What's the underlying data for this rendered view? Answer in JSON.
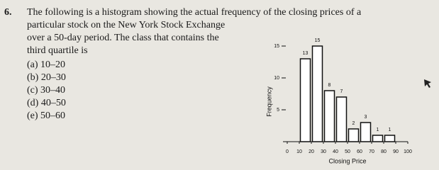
{
  "question": {
    "number": "6.",
    "lines": [
      "The following is a histogram showing the actual frequency of the closing prices of a",
      "particular stock on the New York Stock Exchange",
      "over a 50-day period. The class that contains the",
      "third quartile is"
    ],
    "options": [
      "(a) 10–20",
      "(b) 20–30",
      "(c) 30–40",
      "(d) 40–50",
      "(e) 50–60"
    ]
  },
  "chart_data": {
    "type": "histogram",
    "x_label": "Closing Price",
    "y_label": "Frequency",
    "bins": [
      10,
      20,
      30,
      40,
      50,
      60,
      70,
      80,
      90
    ],
    "values": [
      13,
      15,
      8,
      7,
      2,
      3,
      1,
      1
    ],
    "color": "#ffffff",
    "xlim": [
      0,
      100
    ],
    "xticks": [
      0,
      10,
      20,
      30,
      40,
      50,
      60,
      70,
      80,
      90,
      100
    ],
    "ylim": [
      0,
      17
    ],
    "yticks": [
      5,
      10,
      15
    ]
  }
}
